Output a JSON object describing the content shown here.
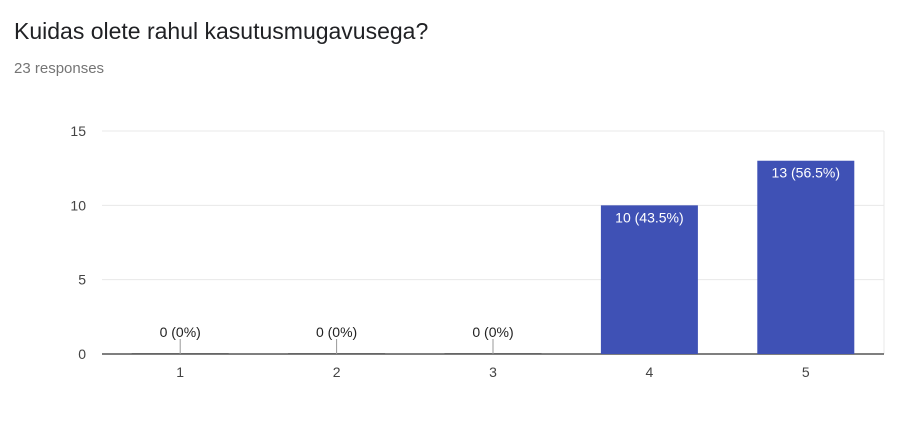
{
  "question": {
    "title": "Kuidas olete rahul kasutusmugavusega?",
    "responses": "23 responses"
  },
  "colors": {
    "bar": "#3f51b5",
    "grid": "#e8e8e8",
    "axis": "#333333"
  },
  "chart_data": {
    "type": "bar",
    "categories": [
      "1",
      "2",
      "3",
      "4",
      "5"
    ],
    "values": [
      0,
      0,
      0,
      10,
      13
    ],
    "data_labels": [
      "0 (0%)",
      "0 (0%)",
      "0 (0%)",
      "10 (43.5%)",
      "13 (56.5%)"
    ],
    "ylim": [
      0,
      15
    ],
    "yticks": [
      "0",
      "5",
      "10",
      "15"
    ],
    "grid": true,
    "legend": "none"
  }
}
